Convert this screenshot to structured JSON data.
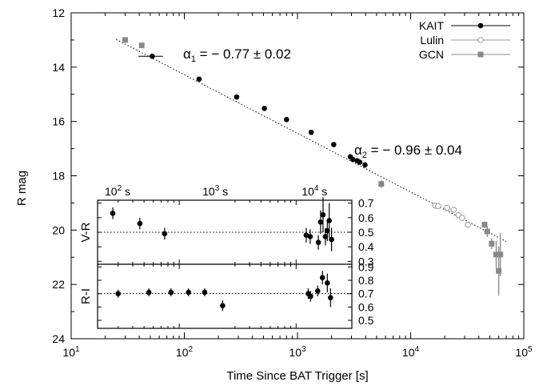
{
  "chart_data": {
    "type": "scatter",
    "xlabel": "Time Since BAT Trigger [s]",
    "ylabel": "R mag",
    "xscale": "log",
    "xlim": [
      10,
      100000
    ],
    "ylim": [
      24,
      12
    ],
    "x_tick_labels": [
      "10",
      "10",
      "10",
      "10",
      "10"
    ],
    "x_tick_exps": [
      "1",
      "2",
      "3",
      "4",
      "5"
    ],
    "y_tick_labels": [
      "12",
      "14",
      "16",
      "18",
      "20",
      "22",
      "24"
    ],
    "legend": {
      "position": "top-right",
      "entries": [
        "KAIT",
        "Lulin",
        "GCN"
      ]
    },
    "annotations": [
      {
        "sym": "α",
        "sub": "1",
        "text": " = − 0.77 ± 0.02"
      },
      {
        "sym": "α",
        "sub": "2",
        "text": " = − 0.96 ± 0.04"
      }
    ],
    "fit": [
      {
        "name": "",
        "x": [
          25,
          70000
        ],
        "y": [
          12.98,
          20.42
        ]
      }
    ],
    "series": [
      {
        "name": "KAIT",
        "marker": "filled-circle",
        "color": "#000000",
        "x": [
          52,
          135,
          290,
          510,
          800,
          1320,
          2090,
          2930,
          3090,
          3380,
          3550,
          3950
        ],
        "y": [
          13.6,
          14.44,
          15.1,
          15.52,
          15.93,
          16.4,
          16.85,
          17.3,
          17.4,
          17.45,
          17.5,
          17.6
        ],
        "xerr": [
          8,
          0,
          0,
          0,
          0,
          0,
          0,
          0,
          0,
          0,
          0,
          0
        ]
      },
      {
        "name": "Lulin",
        "marker": "open-circle",
        "color": "#999999",
        "x": [
          16500,
          17500,
          21000,
          24000,
          26500,
          28500,
          32000
        ],
        "y": [
          19.1,
          19.12,
          19.18,
          19.25,
          19.45,
          19.55,
          19.8
        ]
      },
      {
        "name": "GCN",
        "marker": "filled-square",
        "color": "#888888",
        "x": [
          30,
          42,
          5500,
          45000,
          47500,
          52000,
          57000,
          60000,
          62000
        ],
        "y": [
          13.0,
          13.2,
          18.3,
          19.8,
          20.05,
          20.5,
          20.9,
          21.5,
          20.9
        ],
        "yerr": [
          0,
          0,
          0.15,
          0.12,
          0.2,
          0.2,
          0.5,
          0.9,
          0.8
        ]
      }
    ],
    "insets": [
      {
        "ylabel": "V-R",
        "top_tick_labels": [
          "10",
          "10",
          "10"
        ],
        "top_tick_exps": [
          "2",
          "3",
          "4"
        ],
        "top_tick_unit": "s",
        "right_tick_labels": [
          "0.7",
          "0.6",
          "0.5",
          "0.4",
          "0.3"
        ],
        "reference_y": 0.5,
        "points": {
          "x": [
            27,
            46,
            75,
            1220,
            1320,
            1550,
            1620,
            1700,
            1780,
            1850,
            1920,
            2010
          ],
          "y": [
            0.63,
            0.56,
            0.49,
            0.48,
            0.47,
            0.43,
            0.57,
            0.62,
            0.47,
            0.51,
            0.58,
            0.45
          ],
          "yerr": [
            0.04,
            0.04,
            0.04,
            0.05,
            0.05,
            0.05,
            0.08,
            0.12,
            0.06,
            0.07,
            0.12,
            0.08
          ]
        }
      },
      {
        "ylabel": "R-I",
        "right_tick_labels": [
          "0.9",
          "0.8",
          "0.7",
          "0.6",
          "0.5"
        ],
        "reference_y": 0.7,
        "points": {
          "x": [
            30,
            55,
            85,
            120,
            165,
            235,
            1270,
            1330,
            1530,
            1680,
            1850,
            1970
          ],
          "y": [
            0.7,
            0.71,
            0.71,
            0.71,
            0.71,
            0.61,
            0.7,
            0.68,
            0.72,
            0.82,
            0.78,
            0.67
          ],
          "yerr": [
            0.03,
            0.03,
            0.03,
            0.03,
            0.03,
            0.04,
            0.04,
            0.04,
            0.04,
            0.05,
            0.07,
            0.07
          ]
        }
      }
    ]
  }
}
